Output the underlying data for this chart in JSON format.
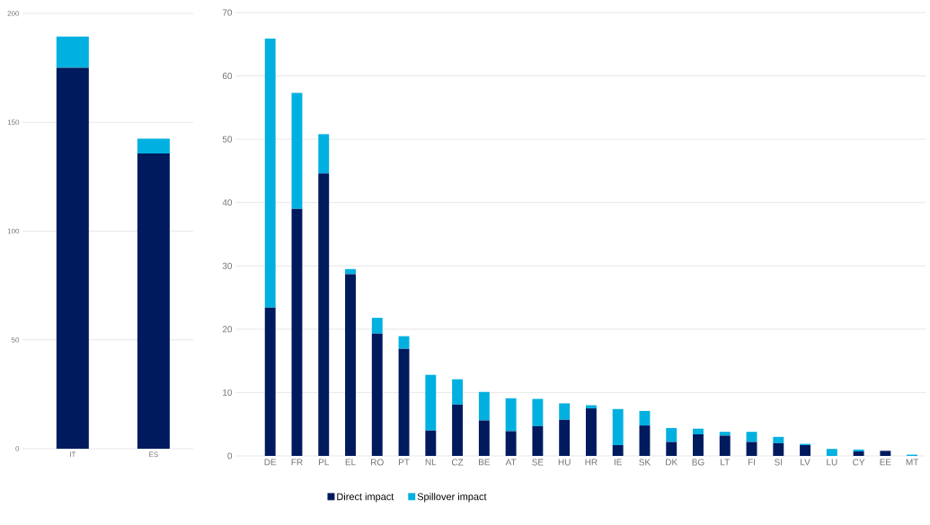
{
  "chart_data": [
    {
      "type": "bar",
      "stacked": true,
      "categories": [
        "IT",
        "ES"
      ],
      "ylim": [
        0,
        200
      ],
      "yticks": [
        0,
        50,
        100,
        150,
        200
      ],
      "grid": "y",
      "series": [
        {
          "color": "#001a5e",
          "values": [
            175.0,
            135.7
          ]
        },
        {
          "color": "#00b0e0",
          "values": [
            14.4,
            6.8
          ]
        }
      ]
    },
    {
      "type": "bar",
      "stacked": true,
      "categories": [
        "DE",
        "FR",
        "PL",
        "EL",
        "RO",
        "PT",
        "NL",
        "CZ",
        "BE",
        "AT",
        "SE",
        "HU",
        "HR",
        "IE",
        "SK",
        "DK",
        "BG",
        "LT",
        "FI",
        "SI",
        "LV",
        "LU",
        "CY",
        "EE",
        "MT"
      ],
      "ylim": [
        0,
        70
      ],
      "yticks": [
        0,
        10,
        20,
        30,
        40,
        50,
        60,
        70
      ],
      "grid": "y",
      "legend": "bottom",
      "series": [
        {
          "name": "Direct impact",
          "color": "#001a5e",
          "values": [
            23.4,
            39.0,
            44.6,
            28.7,
            19.3,
            16.9,
            4.0,
            8.1,
            5.6,
            3.9,
            4.7,
            5.7,
            7.5,
            1.7,
            4.8,
            2.2,
            3.4,
            3.2,
            2.2,
            2.0,
            1.7,
            0,
            0.7,
            0.8,
            0
          ]
        },
        {
          "name": "Spillover impact",
          "color": "#00b0e0",
          "values": [
            42.5,
            18.3,
            6.2,
            0.8,
            2.5,
            2.0,
            8.8,
            4.0,
            4.5,
            5.2,
            4.3,
            2.6,
            0.5,
            5.7,
            2.3,
            2.2,
            0.9,
            0.6,
            1.6,
            1.0,
            0.2,
            1.1,
            0.3,
            null,
            0.2
          ]
        }
      ]
    }
  ]
}
